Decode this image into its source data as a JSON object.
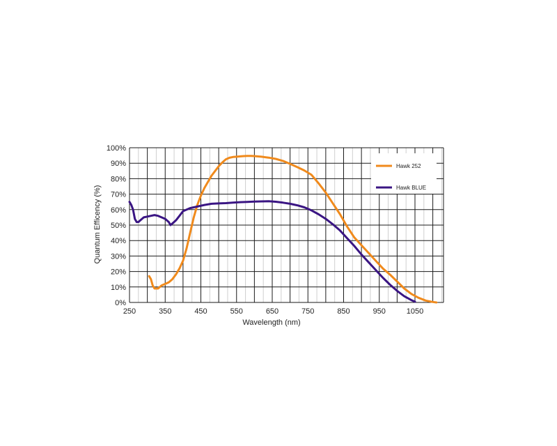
{
  "chart_data": {
    "type": "line",
    "xlabel": "Wavelength (nm)",
    "ylabel": "Quantum Efficency (%)",
    "xlim": [
      250,
      1130
    ],
    "ylim": [
      0,
      100
    ],
    "x_ticks": [
      250,
      350,
      450,
      550,
      650,
      750,
      850,
      950,
      1050
    ],
    "y_ticks": [
      0,
      10,
      20,
      30,
      40,
      50,
      60,
      70,
      80,
      90,
      100
    ],
    "y_tick_labels": [
      "0%",
      "10%",
      "20%",
      "30%",
      "40%",
      "50%",
      "60%",
      "70%",
      "80%",
      "90%",
      "100%"
    ],
    "grid": true,
    "legend_position": "top-right",
    "series": [
      {
        "name": "Hawk 252",
        "color": "#f08a1c",
        "x": [
          305,
          310,
          315,
          320,
          330,
          340,
          350,
          360,
          370,
          380,
          390,
          400,
          410,
          420,
          430,
          440,
          450,
          460,
          470,
          480,
          490,
          500,
          510,
          520,
          530,
          540,
          550,
          560,
          570,
          580,
          590,
          600,
          620,
          640,
          660,
          680,
          700,
          720,
          740,
          760,
          780,
          800,
          820,
          840,
          860,
          880,
          900,
          920,
          940,
          960,
          980,
          1000,
          1020,
          1040,
          1060,
          1080,
          1100,
          1110
        ],
        "y": [
          17,
          15,
          11,
          9,
          9,
          11,
          12,
          13,
          15,
          18,
          22,
          27,
          35,
          45,
          55,
          63,
          69,
          74,
          78,
          82,
          85,
          88,
          90.5,
          92.5,
          93.5,
          94,
          94.2,
          94.4,
          94.6,
          94.7,
          94.7,
          94.6,
          94.2,
          93.6,
          92.8,
          91.5,
          89.6,
          87.5,
          85.3,
          82.5,
          77,
          71,
          64,
          57,
          49,
          42,
          37,
          32,
          27,
          22,
          18,
          13.5,
          9,
          5.5,
          3,
          1.2,
          0.3,
          0
        ]
      },
      {
        "name": "Hawk BLUE",
        "color": "#3a1583",
        "x": [
          250,
          255,
          260,
          265,
          270,
          275,
          280,
          290,
          300,
          310,
          320,
          330,
          340,
          350,
          360,
          365,
          370,
          380,
          390,
          400,
          420,
          440,
          460,
          480,
          500,
          520,
          540,
          560,
          580,
          600,
          620,
          640,
          660,
          680,
          700,
          720,
          740,
          760,
          780,
          800,
          820,
          840,
          860,
          880,
          900,
          920,
          940,
          960,
          980,
          1000,
          1020,
          1040,
          1050
        ],
        "y": [
          65,
          63,
          60,
          54,
          52,
          52,
          53,
          55,
          55.5,
          56,
          56.5,
          56,
          55,
          54,
          52,
          50,
          51,
          53,
          56,
          59,
          61,
          62,
          63,
          63.8,
          64,
          64.2,
          64.5,
          64.8,
          65,
          65.2,
          65.3,
          65.4,
          65.1,
          64.5,
          63.8,
          62.8,
          61.5,
          59.5,
          57,
          54,
          50.5,
          46.5,
          41.5,
          36.5,
          31,
          26,
          21,
          16,
          11.5,
          7.5,
          4,
          1.5,
          0.5
        ]
      }
    ]
  }
}
